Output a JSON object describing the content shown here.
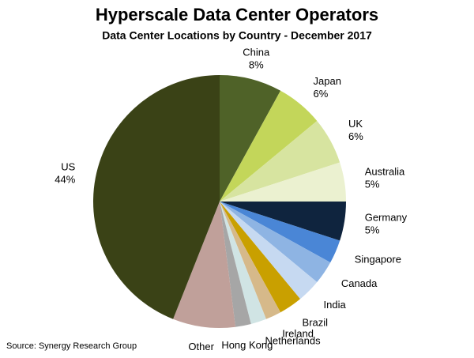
{
  "chart_data": {
    "type": "pie",
    "title": "Hyperscale Data Center Operators",
    "subtitle": "Data Center Locations by Country - December 2017",
    "source": "Source: Synergy Research Group",
    "categories": [
      "China",
      "Japan",
      "UK",
      "Australia",
      "Germany",
      "Singapore",
      "Canada",
      "India",
      "Brazil",
      "Ireland",
      "Netherlands",
      "Hong Kong",
      "Other",
      "US"
    ],
    "values": [
      8,
      6,
      6,
      5,
      5,
      3,
      3,
      3,
      3,
      2,
      2,
      2,
      8,
      44
    ],
    "value_labels": [
      "8%",
      "6%",
      "6%",
      "5%",
      "5%",
      null,
      null,
      null,
      null,
      null,
      null,
      null,
      null,
      "44%"
    ],
    "colors": [
      "#4f6228",
      "#c3d65a",
      "#d7e4a0",
      "#ebf1d0",
      "#0f243e",
      "#4a86d6",
      "#8eb4e3",
      "#c6d9f1",
      "#c9a000",
      "#d6b98a",
      "#d0e4e4",
      "#a6a6a6",
      "#c0a09a",
      "#3a4216"
    ]
  }
}
